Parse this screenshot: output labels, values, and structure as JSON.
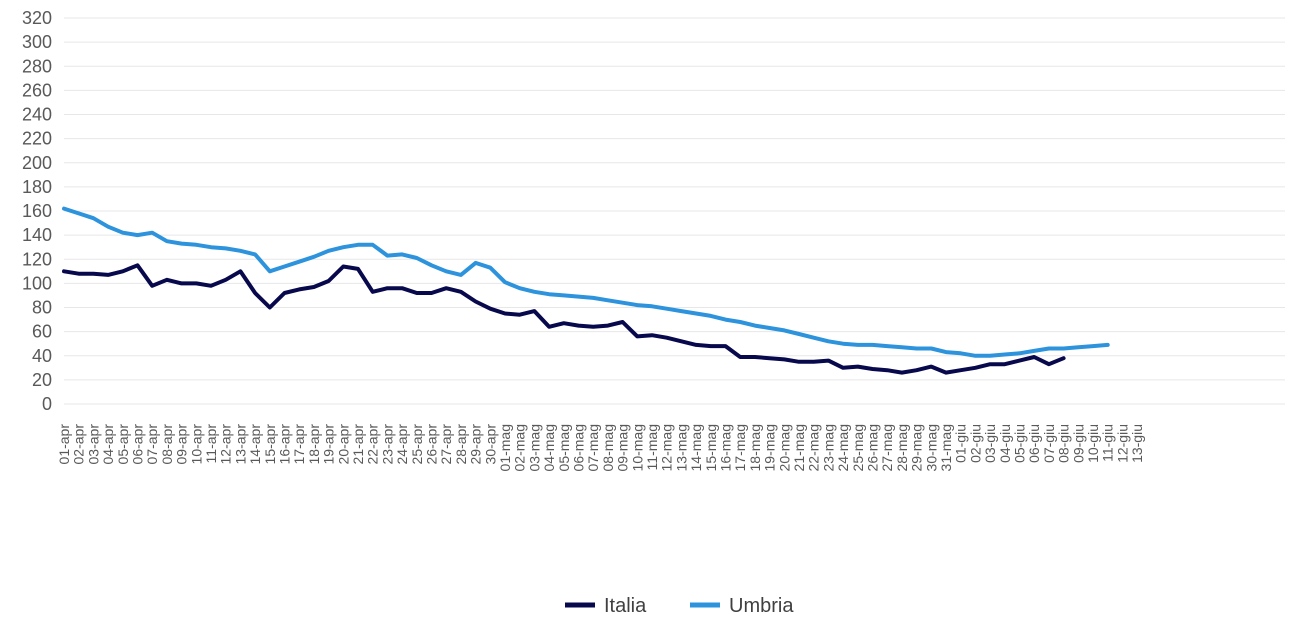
{
  "chart_data": {
    "type": "line",
    "title": "",
    "xlabel": "",
    "ylabel": "",
    "ylim": [
      0,
      320
    ],
    "yticks": [
      "0",
      "20",
      "40",
      "60",
      "80",
      "100",
      "120",
      "140",
      "160",
      "180",
      "200",
      "220",
      "240",
      "260",
      "280",
      "300",
      "320"
    ],
    "grid": true,
    "legend_position": "bottom",
    "x": [
      "01-apr",
      "02-apr",
      "03-apr",
      "04-apr",
      "05-apr",
      "06-apr",
      "07-apr",
      "08-apr",
      "09-apr",
      "10-apr",
      "11-apr",
      "12-apr",
      "13-apr",
      "14-apr",
      "15-apr",
      "16-apr",
      "17-apr",
      "18-apr",
      "19-apr",
      "20-apr",
      "21-apr",
      "22-apr",
      "23-apr",
      "24-apr",
      "25-apr",
      "26-apr",
      "27-apr",
      "28-apr",
      "29-apr",
      "30-apr",
      "01-mag",
      "02-mag",
      "03-mag",
      "04-mag",
      "05-mag",
      "06-mag",
      "07-mag",
      "08-mag",
      "09-mag",
      "10-mag",
      "11-mag",
      "12-mag",
      "13-mag",
      "14-mag",
      "15-mag",
      "16-mag",
      "17-mag",
      "18-mag",
      "19-mag",
      "20-mag",
      "21-mag",
      "22-mag",
      "23-mag",
      "24-mag",
      "25-mag",
      "26-mag",
      "27-mag",
      "28-mag",
      "29-mag",
      "30-mag",
      "31-mag",
      "01-giu",
      "02-giu",
      "03-giu",
      "04-giu",
      "05-giu",
      "06-giu",
      "07-giu",
      "08-giu",
      "09-giu",
      "10-giu",
      "11-giu",
      "12-giu",
      "13-giu"
    ],
    "series": [
      {
        "name": "Italia",
        "color": "#08084d",
        "values": [
          110,
          108,
          108,
          107,
          110,
          115,
          98,
          103,
          100,
          100,
          98,
          103,
          110,
          92,
          80,
          92,
          95,
          97,
          102,
          114,
          112,
          93,
          96,
          96,
          92,
          92,
          96,
          93,
          85,
          79,
          75,
          74,
          77,
          64,
          67,
          65,
          64,
          65,
          68,
          56,
          57,
          55,
          52,
          49,
          48,
          48,
          39,
          39,
          38,
          37,
          35,
          35,
          36,
          30,
          31,
          29,
          28,
          26,
          28,
          31,
          26,
          28,
          30,
          33,
          33,
          36,
          39,
          33,
          38,
          null,
          null,
          null,
          null,
          null
        ]
      },
      {
        "name": "Umbria",
        "color": "#2c93dc",
        "values": [
          162,
          158,
          154,
          147,
          142,
          140,
          142,
          135,
          133,
          132,
          130,
          129,
          127,
          124,
          110,
          114,
          118,
          122,
          127,
          130,
          132,
          132,
          123,
          124,
          121,
          115,
          110,
          107,
          117,
          113,
          101,
          96,
          93,
          91,
          90,
          89,
          88,
          86,
          84,
          82,
          81,
          79,
          77,
          75,
          73,
          70,
          68,
          65,
          63,
          61,
          58,
          55,
          52,
          50,
          49,
          49,
          48,
          47,
          46,
          46,
          43,
          42,
          40,
          40,
          41,
          42,
          44,
          46,
          46,
          47,
          48,
          49,
          null,
          null
        ]
      }
    ]
  }
}
